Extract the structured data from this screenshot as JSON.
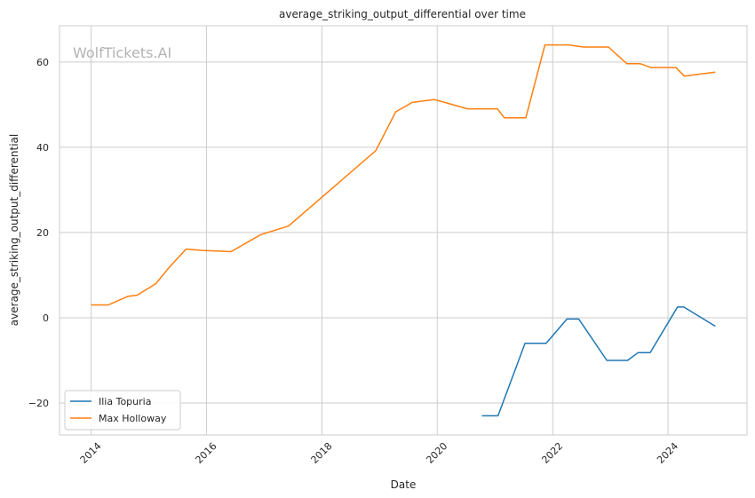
{
  "chart_data": {
    "type": "line",
    "title": "average_striking_output_differential over time",
    "xlabel": "Date",
    "ylabel": "average_striking_output_differential",
    "watermark": "WolfTickets.AI",
    "x_ticks": [
      "2014",
      "2016",
      "2018",
      "2020",
      "2022",
      "2024"
    ],
    "y_ticks": [
      "−20",
      "0",
      "20",
      "40",
      "60"
    ],
    "xlim": [
      "2013-06-15",
      "2025-05-15"
    ],
    "ylim": [
      -27.5,
      68.5
    ],
    "grid": true,
    "legend_position": "lower-left",
    "series": [
      {
        "name": "Ilia Topuria",
        "color": "#1f77b4",
        "points": [
          [
            "2020-10-10",
            -23
          ],
          [
            "2021-01-20",
            -23
          ],
          [
            "2021-07-10",
            -6
          ],
          [
            "2021-11-20",
            -6
          ],
          [
            "2022-04-01",
            -0.3
          ],
          [
            "2022-06-15",
            -0.3
          ],
          [
            "2022-12-10",
            -10
          ],
          [
            "2023-04-20",
            -10
          ],
          [
            "2023-06-25",
            -8.2
          ],
          [
            "2023-09-10",
            -8.2
          ],
          [
            "2024-03-01",
            2.5
          ],
          [
            "2024-04-10",
            2.5
          ],
          [
            "2024-10-26",
            -2
          ]
        ]
      },
      {
        "name": "Max Holloway",
        "color": "#ff7f0e",
        "points": [
          [
            "2014-01-01",
            3
          ],
          [
            "2014-04-20",
            3
          ],
          [
            "2014-08-20",
            5
          ],
          [
            "2014-10-20",
            5.3
          ],
          [
            "2015-02-15",
            8
          ],
          [
            "2015-05-10",
            11.8
          ],
          [
            "2015-08-25",
            16.1
          ],
          [
            "2015-12-10",
            15.8
          ],
          [
            "2016-06-05",
            15.5
          ],
          [
            "2016-12-10",
            19.5
          ],
          [
            "2017-06-03",
            21.5
          ],
          [
            "2018-12-08",
            39.2
          ],
          [
            "2019-04-13",
            48.3
          ],
          [
            "2019-07-27",
            50.5
          ],
          [
            "2019-12-14",
            51.2
          ],
          [
            "2020-07-11",
            49
          ],
          [
            "2021-01-16",
            49
          ],
          [
            "2021-03-01",
            46.9
          ],
          [
            "2021-07-15",
            46.9
          ],
          [
            "2021-11-13",
            64
          ],
          [
            "2022-04-10",
            64
          ],
          [
            "2022-07-16",
            63.5
          ],
          [
            "2022-12-20",
            63.5
          ],
          [
            "2023-04-15",
            59.6
          ],
          [
            "2023-07-08",
            59.6
          ],
          [
            "2023-09-15",
            58.7
          ],
          [
            "2024-02-20",
            58.7
          ],
          [
            "2024-04-13",
            56.7
          ],
          [
            "2024-10-26",
            57.6
          ]
        ]
      }
    ]
  }
}
